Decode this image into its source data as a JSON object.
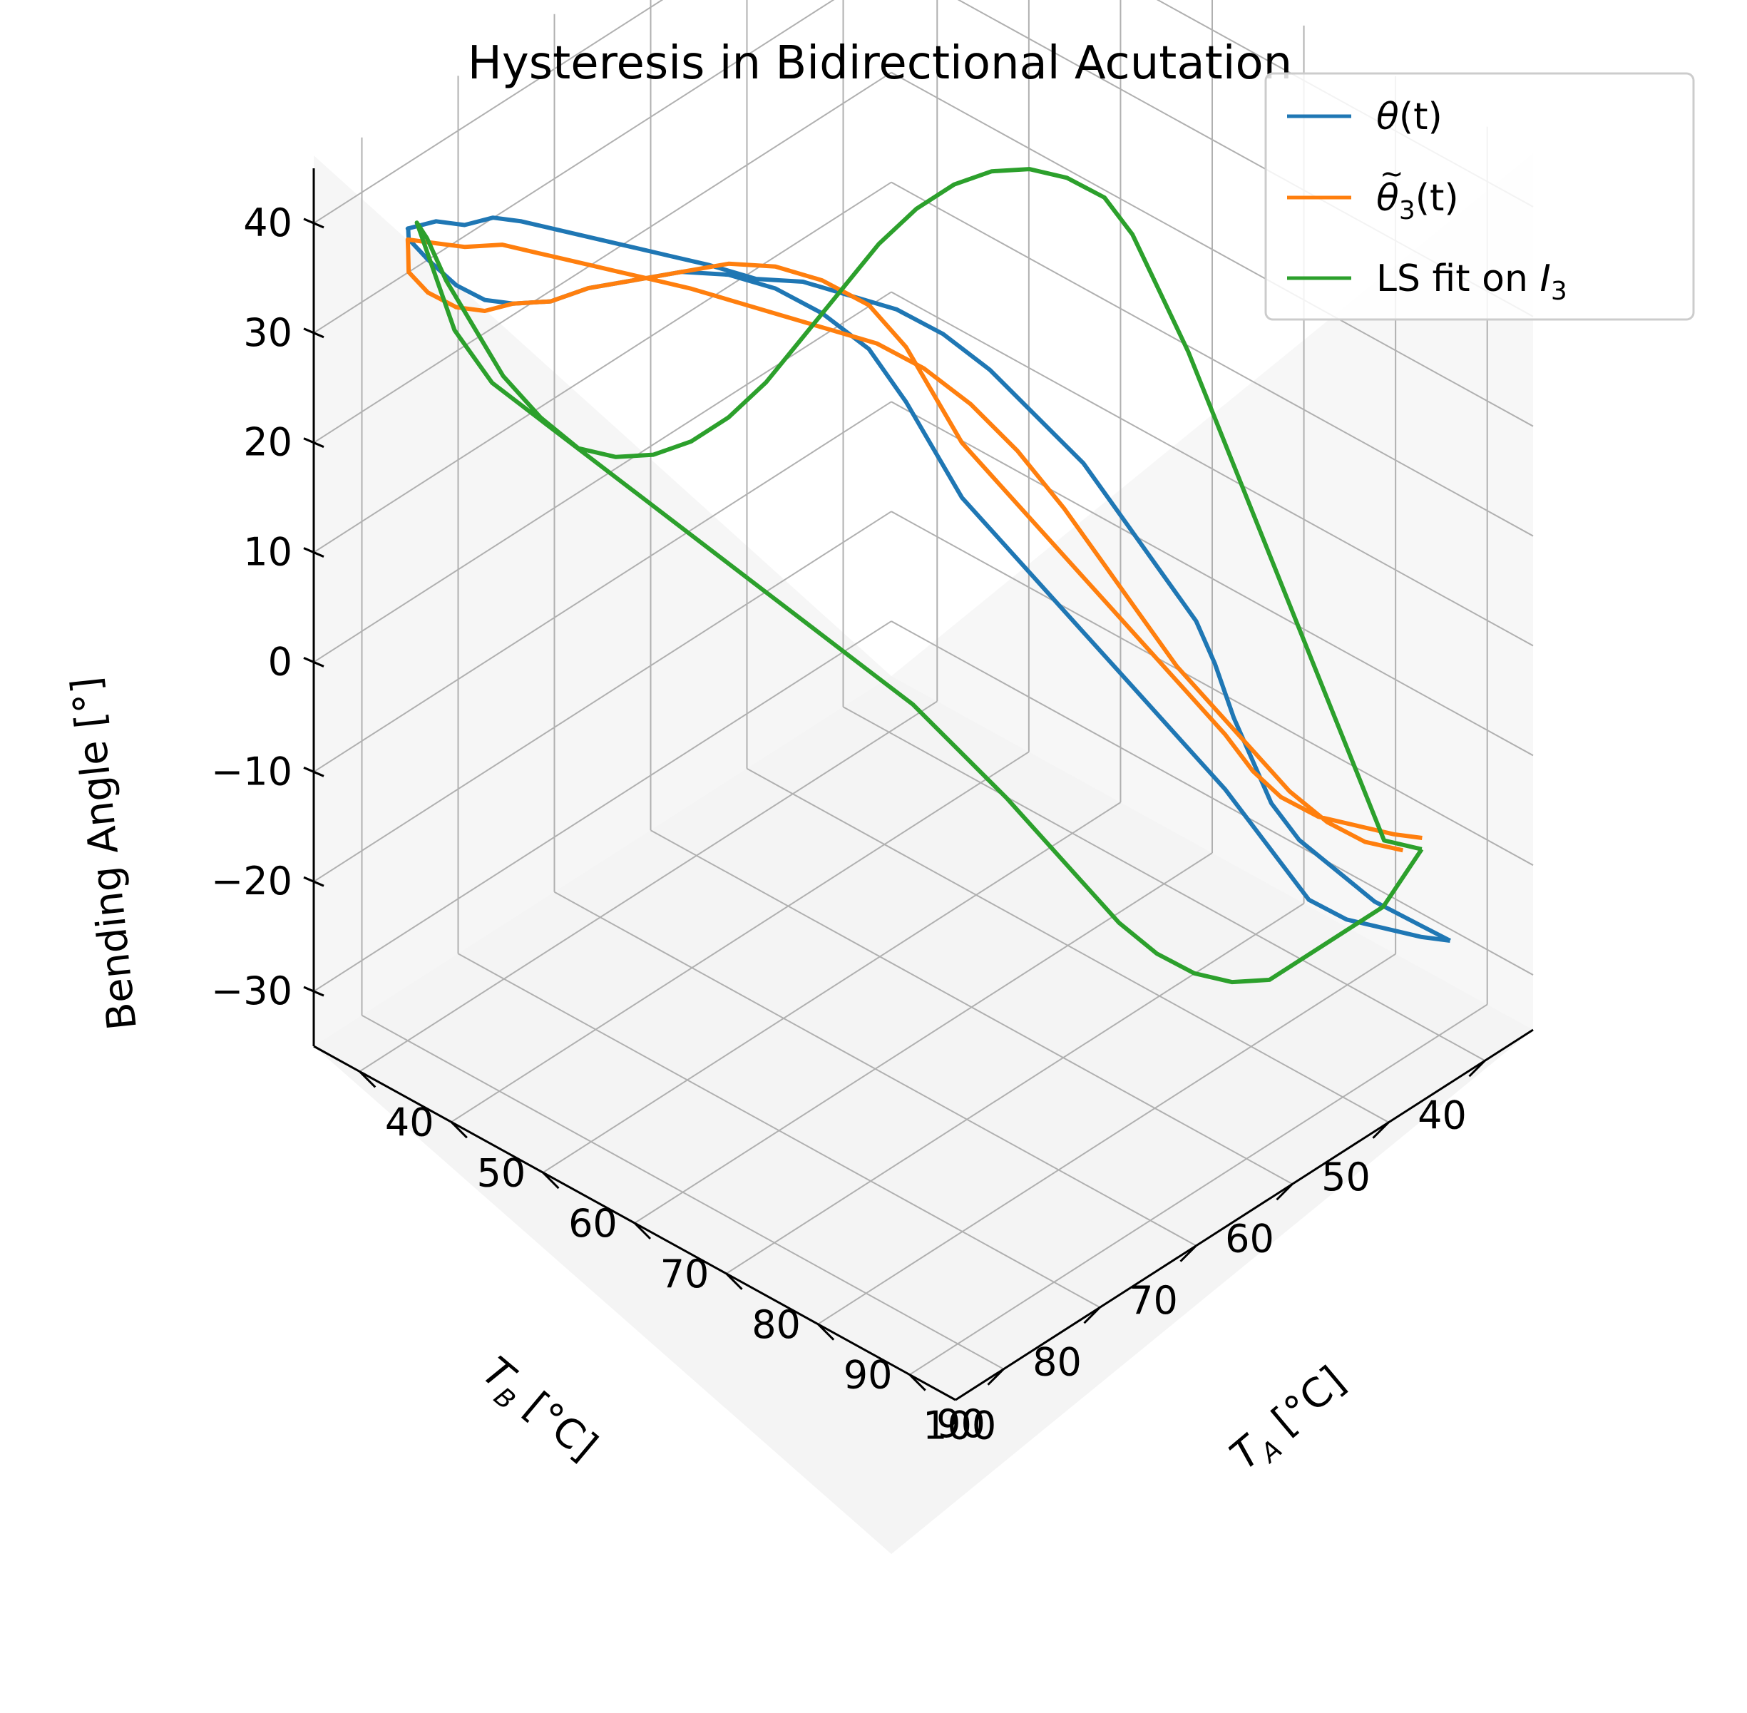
{
  "chart_data": {
    "type": "line",
    "projection": "3d",
    "title": "Hysteresis in Bidirectional Acutation",
    "xlabel": "T",
    "xlabel_sub": "A",
    "xlabel_unit": " [°C]",
    "ylabel": "T",
    "ylabel_sub": "B",
    "ylabel_unit": " [°C]",
    "zlabel": "Bending Angle [°]",
    "xlim": [
      35,
      105
    ],
    "ylim": [
      35,
      95
    ],
    "zlim": [
      -35,
      45
    ],
    "x_ticks": [
      "40",
      "50",
      "60",
      "70",
      "80",
      "90",
      "100"
    ],
    "y_ticks": [
      "40",
      "50",
      "60",
      "70",
      "80",
      "90"
    ],
    "z_ticks": [
      "40",
      "30",
      "20",
      "10",
      "0",
      "−10",
      "−20",
      "−30"
    ],
    "grid": true,
    "legend_position": "top-right",
    "legend": [
      {
        "base": "θ",
        "sub": "",
        "tail": "(t)",
        "tilde": false
      },
      {
        "base": "θ",
        "sub": "3",
        "tail": "(t)",
        "tilde": true
      },
      {
        "base": "LS fit on ",
        "ital": "I",
        "sub": "3",
        "tail": "",
        "tilde": false
      }
    ],
    "series": [
      {
        "color": "#1f77b4",
        "points": [
          [
            97,
            36,
            -30
          ],
          [
            96,
            38,
            -29
          ],
          [
            94,
            40,
            -28
          ],
          [
            92,
            42,
            -27
          ],
          [
            90,
            44,
            -25
          ],
          [
            88,
            45,
            -22
          ],
          [
            86,
            46,
            -19
          ],
          [
            84,
            47,
            -16
          ],
          [
            82,
            49,
            -12
          ],
          [
            80,
            51,
            -8
          ],
          [
            78,
            53,
            -4
          ],
          [
            76,
            55,
            0
          ],
          [
            74,
            57,
            4
          ],
          [
            72,
            59,
            8
          ],
          [
            70,
            61,
            12
          ],
          [
            68,
            62,
            16
          ],
          [
            66,
            63,
            20
          ],
          [
            63,
            64,
            24
          ],
          [
            60,
            66,
            27
          ],
          [
            57,
            68,
            29
          ],
          [
            54,
            70,
            30
          ],
          [
            51,
            72,
            30
          ],
          [
            48,
            74,
            29
          ],
          [
            45,
            76,
            28
          ],
          [
            43,
            78,
            27
          ],
          [
            41,
            80,
            27
          ],
          [
            40,
            82,
            28
          ],
          [
            39,
            84,
            30
          ],
          [
            38,
            86,
            33
          ],
          [
            38,
            88,
            36
          ],
          [
            39,
            89,
            38
          ],
          [
            40,
            90,
            39
          ],
          [
            41,
            88,
            39
          ],
          [
            42,
            86,
            38
          ],
          [
            43,
            84,
            38
          ],
          [
            44,
            82,
            37
          ],
          [
            46,
            80,
            36
          ],
          [
            48,
            78,
            35
          ],
          [
            50,
            76,
            34
          ],
          [
            52,
            74,
            33
          ],
          [
            54,
            72,
            32
          ],
          [
            57,
            70,
            31
          ],
          [
            60,
            68,
            31
          ],
          [
            63,
            66,
            30
          ],
          [
            66,
            64,
            29
          ],
          [
            69,
            62,
            27
          ],
          [
            72,
            60,
            24
          ],
          [
            75,
            58,
            20
          ],
          [
            78,
            56,
            16
          ],
          [
            80,
            54,
            11
          ],
          [
            82,
            52,
            6
          ],
          [
            84,
            50,
            1
          ],
          [
            85,
            49,
            -3
          ],
          [
            86,
            48,
            -8
          ],
          [
            87,
            47,
            -12
          ],
          [
            88,
            46,
            -16
          ],
          [
            90,
            45,
            -19
          ],
          [
            92,
            43,
            -22
          ],
          [
            94,
            41,
            -25
          ],
          [
            96,
            38,
            -28
          ],
          [
            97,
            36,
            -30
          ]
        ]
      },
      {
        "color": "#ff7f0e",
        "points": [
          [
            95,
            37,
            -21
          ],
          [
            94,
            39,
            -20
          ],
          [
            92,
            41,
            -19
          ],
          [
            90,
            43,
            -18
          ],
          [
            88,
            45,
            -16
          ],
          [
            86,
            46,
            -14
          ],
          [
            84,
            47,
            -11
          ],
          [
            82,
            49,
            -7
          ],
          [
            80,
            51,
            -3
          ],
          [
            78,
            53,
            1
          ],
          [
            76,
            55,
            5
          ],
          [
            74,
            57,
            9
          ],
          [
            72,
            59,
            13
          ],
          [
            70,
            61,
            17
          ],
          [
            68,
            62,
            21
          ],
          [
            66,
            63,
            25
          ],
          [
            63,
            64,
            28
          ],
          [
            60,
            66,
            30
          ],
          [
            57,
            68,
            31
          ],
          [
            54,
            70,
            31
          ],
          [
            51,
            72,
            30
          ],
          [
            48,
            74,
            29
          ],
          [
            45,
            76,
            28
          ],
          [
            43,
            78,
            27
          ],
          [
            41,
            80,
            27
          ],
          [
            40,
            82,
            27
          ],
          [
            39,
            84,
            28
          ],
          [
            38,
            86,
            30
          ],
          [
            38,
            88,
            33
          ],
          [
            39,
            89,
            36
          ],
          [
            40,
            90,
            38
          ],
          [
            41,
            88,
            37
          ],
          [
            42,
            86,
            36
          ],
          [
            44,
            84,
            36
          ],
          [
            46,
            82,
            35
          ],
          [
            48,
            80,
            34
          ],
          [
            50,
            78,
            33
          ],
          [
            52,
            76,
            32
          ],
          [
            54,
            74,
            31
          ],
          [
            57,
            72,
            30
          ],
          [
            60,
            70,
            29
          ],
          [
            63,
            68,
            28
          ],
          [
            66,
            66,
            27
          ],
          [
            69,
            64,
            25
          ],
          [
            72,
            62,
            22
          ],
          [
            75,
            60,
            18
          ],
          [
            78,
            58,
            13
          ],
          [
            80,
            56,
            8
          ],
          [
            82,
            54,
            3
          ],
          [
            84,
            52,
            -2
          ],
          [
            86,
            50,
            -6
          ],
          [
            88,
            48,
            -10
          ],
          [
            90,
            46,
            -14
          ],
          [
            92,
            44,
            -17
          ],
          [
            94,
            42,
            -19
          ],
          [
            95,
            39,
            -21
          ]
        ]
      },
      {
        "color": "#2ca02c",
        "points": [
          [
            96,
            38,
            -21
          ],
          [
            94,
            40,
            -20
          ],
          [
            92,
            41,
            -14
          ],
          [
            90,
            42,
            -8
          ],
          [
            88,
            43,
            -2
          ],
          [
            86,
            44,
            4
          ],
          [
            84,
            45,
            10
          ],
          [
            82,
            46,
            16
          ],
          [
            80,
            47,
            22
          ],
          [
            78,
            48,
            27
          ],
          [
            76,
            49,
            32
          ],
          [
            74,
            50,
            35
          ],
          [
            72,
            52,
            37
          ],
          [
            70,
            54,
            38
          ],
          [
            68,
            56,
            38
          ],
          [
            66,
            58,
            37
          ],
          [
            64,
            60,
            35
          ],
          [
            62,
            62,
            32
          ],
          [
            60,
            64,
            28
          ],
          [
            58,
            66,
            24
          ],
          [
            56,
            68,
            20
          ],
          [
            54,
            70,
            17
          ],
          [
            52,
            72,
            15
          ],
          [
            50,
            74,
            14
          ],
          [
            48,
            76,
            14
          ],
          [
            46,
            78,
            15
          ],
          [
            44,
            80,
            18
          ],
          [
            42,
            82,
            22
          ],
          [
            41,
            84,
            27
          ],
          [
            40,
            86,
            32
          ],
          [
            40,
            88,
            37
          ],
          [
            41,
            90,
            40
          ],
          [
            43,
            88,
            30
          ],
          [
            45,
            86,
            25
          ],
          [
            48,
            84,
            22
          ],
          [
            51,
            82,
            19
          ],
          [
            54,
            80,
            16
          ],
          [
            57,
            78,
            13
          ],
          [
            60,
            76,
            10
          ],
          [
            63,
            74,
            7
          ],
          [
            66,
            72,
            4
          ],
          [
            69,
            70,
            1
          ],
          [
            72,
            68,
            -2
          ],
          [
            75,
            66,
            -6
          ],
          [
            78,
            64,
            -10
          ],
          [
            80,
            62,
            -14
          ],
          [
            82,
            60,
            -18
          ],
          [
            84,
            58,
            -22
          ],
          [
            86,
            56,
            -25
          ],
          [
            88,
            54,
            -27
          ],
          [
            90,
            52,
            -28
          ],
          [
            92,
            50,
            -28
          ],
          [
            94,
            46,
            -26
          ],
          [
            96,
            42,
            -24
          ],
          [
            96,
            38,
            -21
          ]
        ]
      }
    ]
  }
}
